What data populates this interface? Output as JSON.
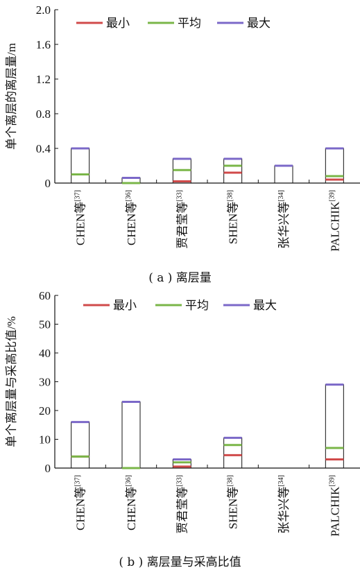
{
  "chart_data": [
    {
      "type": "bar",
      "title": "",
      "caption": "( a )  离层量",
      "ylabel": "单个离层的离层量/m",
      "xlabel": "",
      "ylim": [
        0,
        2.0
      ],
      "yticks": [
        0,
        0.4,
        0.8,
        1.2,
        1.6,
        2.0
      ],
      "ytick_labels": [
        "0",
        "0.4",
        "0.8",
        "1.2",
        "1.6",
        "2.0"
      ],
      "legend_position": "top",
      "categories": [
        {
          "base": "CHEN等",
          "ref": "[37]"
        },
        {
          "base": "CHEN等",
          "ref": "[36]"
        },
        {
          "base": "贾君莹等",
          "ref": "[33]"
        },
        {
          "base": "SHEN等",
          "ref": "[38]"
        },
        {
          "base": "张华兴等",
          "ref": "[34]"
        },
        {
          "base": "PALCHIK",
          "ref": "[39]"
        }
      ],
      "series": [
        {
          "name": "最小",
          "color": "#d04a4a",
          "values": [
            0.1,
            0.0,
            0.02,
            0.12,
            0.2,
            0.04
          ]
        },
        {
          "name": "平均",
          "color": "#7ab648",
          "values": [
            0.1,
            0.0,
            0.15,
            0.2,
            0.2,
            0.08
          ]
        },
        {
          "name": "最大",
          "color": "#7b68c8",
          "values": [
            0.4,
            0.06,
            0.28,
            0.28,
            0.2,
            0.4
          ]
        }
      ]
    },
    {
      "type": "bar",
      "title": "",
      "caption": "( b )  离层量与采高比值",
      "ylabel": "单个离层量与采高比值/%",
      "xlabel": "",
      "ylim": [
        0,
        60
      ],
      "yticks": [
        0,
        10,
        20,
        30,
        40,
        50,
        60
      ],
      "ytick_labels": [
        "0",
        "10",
        "20",
        "30",
        "40",
        "50",
        "60"
      ],
      "legend_position": "top",
      "categories": [
        {
          "base": "CHEN等",
          "ref": "[37]"
        },
        {
          "base": "CHEN等",
          "ref": "[36]"
        },
        {
          "base": "贾君莹等",
          "ref": "[33]"
        },
        {
          "base": "SHEN等",
          "ref": "[38]"
        },
        {
          "base": "张华兴等",
          "ref": "[34]"
        },
        {
          "base": "PALCHIK",
          "ref": "[39]"
        }
      ],
      "series": [
        {
          "name": "最小",
          "color": "#d04a4a",
          "values": [
            4,
            0,
            0.5,
            4.5,
            null,
            3
          ]
        },
        {
          "name": "平均",
          "color": "#7ab648",
          "values": [
            4,
            0,
            2,
            8,
            null,
            7
          ]
        },
        {
          "name": "最大",
          "color": "#7b68c8",
          "values": [
            16,
            23,
            3,
            10.5,
            null,
            29
          ]
        }
      ]
    }
  ]
}
